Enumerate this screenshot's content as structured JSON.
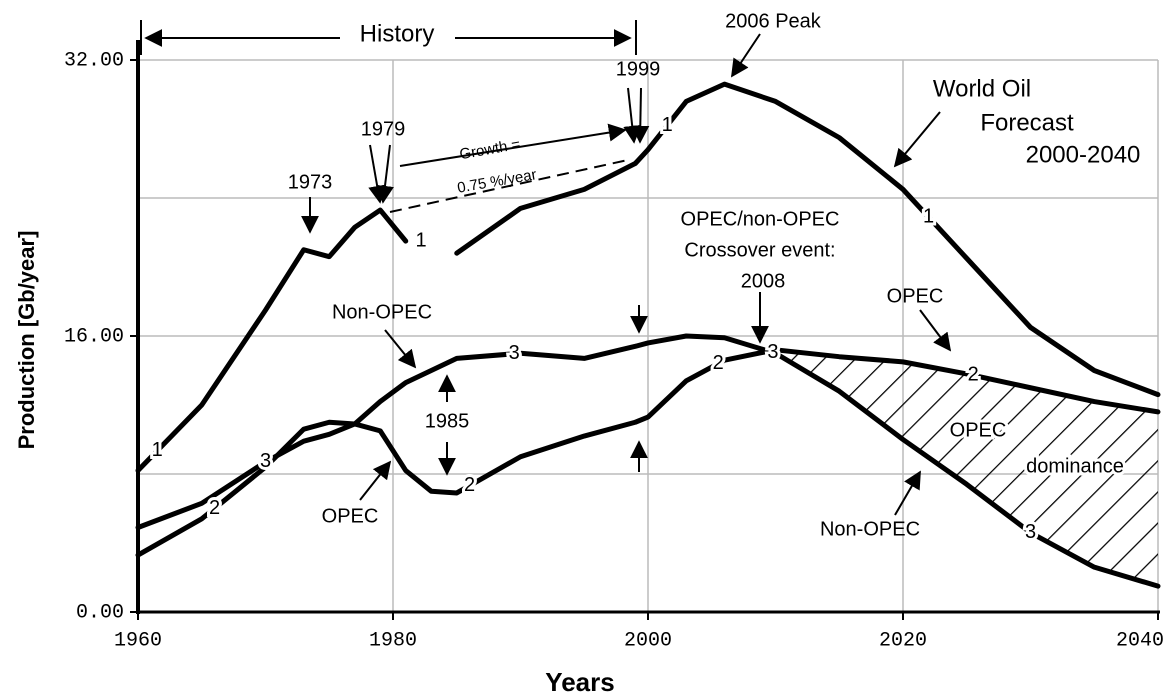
{
  "chart_data": {
    "type": "line",
    "xlabel": "Years",
    "ylabel": "Production  [Gb/year]",
    "xlim": [
      1960,
      2040
    ],
    "ylim": [
      0,
      32
    ],
    "xticks": [
      1960,
      1980,
      2000,
      2020,
      2040
    ],
    "yticks": [
      {
        "value": 0,
        "label": "0.00"
      },
      {
        "value": 16,
        "label": "16.00"
      },
      {
        "value": 32,
        "label": "32.00"
      }
    ],
    "minor_yticks": [
      8,
      24
    ],
    "grid": true,
    "x": [
      1960,
      1965,
      1970,
      1973,
      1975,
      1977,
      1979,
      1981,
      1983,
      1985,
      1990,
      1995,
      1999,
      2000,
      2003,
      2006,
      2010,
      2015,
      2020,
      2025,
      2030,
      2035,
      2040
    ],
    "series": [
      {
        "name": "1",
        "color": "#000000",
        "values": [
          8.2,
          12,
          17.5,
          21,
          20.6,
          22.3,
          23.3,
          21.5,
          null,
          20.8,
          23.4,
          24.5,
          26,
          26.8,
          29.6,
          30.6,
          29.6,
          27.5,
          24.5,
          20.5,
          16.5,
          14,
          12.6
        ]
      },
      {
        "name": "2",
        "color": "#000000",
        "values": [
          3.3,
          5.4,
          8.4,
          10.6,
          11,
          10.9,
          10.5,
          8.2,
          7,
          6.9,
          9,
          10.2,
          11,
          11.3,
          13.4,
          14.6,
          15.2,
          14.8,
          14.5,
          13.8,
          13,
          12.2,
          11.6
        ]
      },
      {
        "name": "3",
        "color": "#000000",
        "values": [
          4.9,
          6.3,
          8.7,
          9.9,
          10.3,
          10.9,
          12.2,
          13.3,
          14,
          14.7,
          15,
          14.7,
          15.4,
          15.6,
          16,
          15.9,
          15,
          12.8,
          10,
          7.4,
          4.6,
          2.6,
          1.5
        ]
      }
    ],
    "annotations": [
      "History",
      "2006 Peak",
      "1999",
      "1979",
      "1973",
      "Growth =",
      "0.75 %/year",
      "World Oil",
      "Forecast",
      "2000-2040",
      "OPEC/non-OPEC",
      "Crossover event:",
      "2008",
      "OPEC",
      "Non-OPEC",
      "1985",
      "OPEC",
      "OPEC",
      "dominance",
      "Non-OPEC"
    ]
  }
}
